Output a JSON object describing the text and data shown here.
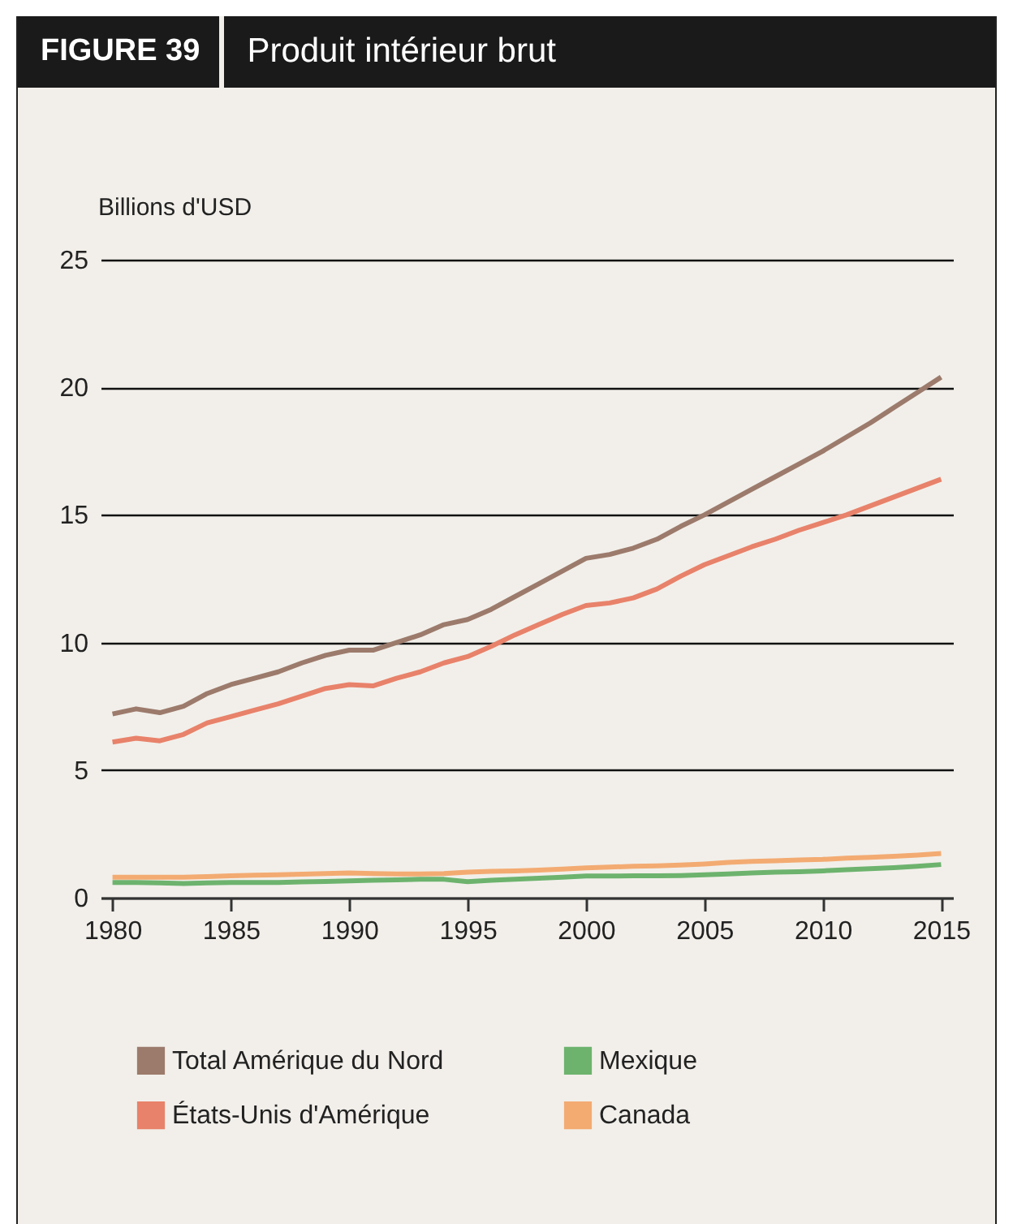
{
  "chart_data": {
    "type": "line",
    "title": "FIGURE 39",
    "subtitle": "Produit intérieur brut",
    "ylabel": "Billions d'USD",
    "x": [
      1980,
      1981,
      1982,
      1983,
      1984,
      1985,
      1986,
      1987,
      1988,
      1989,
      1990,
      1991,
      1992,
      1993,
      1994,
      1995,
      1996,
      1997,
      1998,
      1999,
      2000,
      2001,
      2002,
      2003,
      2004,
      2005,
      2006,
      2007,
      2008,
      2009,
      2010,
      2011,
      2012,
      2013,
      2014,
      2015
    ],
    "series": [
      {
        "name": "Total Amérique du Nord",
        "color": "#9c7b6c",
        "values": [
          7.2,
          7.4,
          7.25,
          7.5,
          8.0,
          8.35,
          8.6,
          8.85,
          9.2,
          9.5,
          9.7,
          9.7,
          10.0,
          10.3,
          10.7,
          10.9,
          11.3,
          11.8,
          12.3,
          12.8,
          13.3,
          13.45,
          13.7,
          14.05,
          14.55,
          15.0,
          15.5,
          16.0,
          16.5,
          17.0,
          17.5,
          18.05,
          18.6,
          19.2,
          19.8,
          20.4
        ]
      },
      {
        "name": "États-Unis d'Amérique",
        "color": "#e8826a",
        "values": [
          6.1,
          6.25,
          6.15,
          6.4,
          6.85,
          7.1,
          7.35,
          7.6,
          7.9,
          8.2,
          8.35,
          8.3,
          8.6,
          8.85,
          9.2,
          9.45,
          9.85,
          10.3,
          10.7,
          11.1,
          11.45,
          11.55,
          11.75,
          12.1,
          12.6,
          13.05,
          13.4,
          13.75,
          14.05,
          14.4,
          14.7,
          15.0,
          15.35,
          15.7,
          16.05,
          16.4
        ]
      },
      {
        "name": "Mexique",
        "color": "#6db36e",
        "values": [
          0.6,
          0.6,
          0.58,
          0.56,
          0.58,
          0.6,
          0.6,
          0.6,
          0.62,
          0.64,
          0.66,
          0.68,
          0.7,
          0.72,
          0.72,
          0.63,
          0.68,
          0.72,
          0.76,
          0.8,
          0.85,
          0.85,
          0.86,
          0.86,
          0.87,
          0.9,
          0.93,
          0.97,
          1.0,
          1.02,
          1.05,
          1.1,
          1.14,
          1.18,
          1.23,
          1.3
        ]
      },
      {
        "name": "Canada",
        "color": "#f3ab72",
        "values": [
          0.8,
          0.8,
          0.8,
          0.8,
          0.83,
          0.86,
          0.88,
          0.9,
          0.92,
          0.95,
          0.97,
          0.95,
          0.93,
          0.93,
          0.95,
          1.0,
          1.03,
          1.05,
          1.08,
          1.12,
          1.17,
          1.2,
          1.23,
          1.25,
          1.28,
          1.32,
          1.38,
          1.42,
          1.45,
          1.48,
          1.5,
          1.55,
          1.58,
          1.62,
          1.67,
          1.73
        ]
      }
    ],
    "xlim": [
      1979.5,
      2015.5
    ],
    "xticks": [
      1980,
      1985,
      1990,
      1995,
      2000,
      2005,
      2010,
      2015
    ],
    "ylim": [
      0,
      25
    ],
    "yticks": [
      0,
      5,
      10,
      15,
      20,
      25
    ],
    "grid": "y",
    "legend": "bottom"
  }
}
